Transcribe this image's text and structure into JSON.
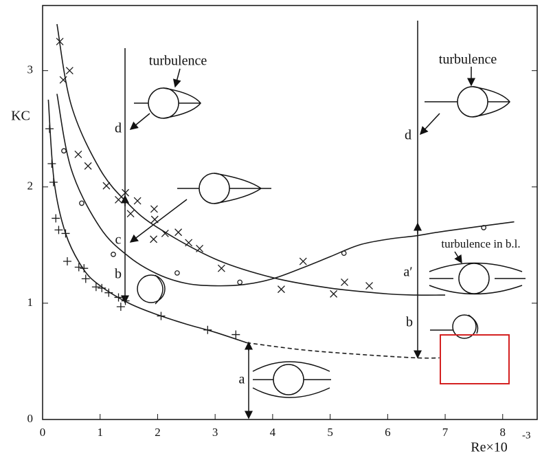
{
  "chart_data": {
    "type": "scatter",
    "x_label": "Re×10",
    "x_label_exponent": "-3",
    "y_label": "KC",
    "xlim": [
      0,
      8.6
    ],
    "ylim": [
      0,
      3.56
    ],
    "xticks": [
      0,
      1,
      2,
      3,
      4,
      5,
      6,
      7,
      8
    ],
    "yticks": [
      0,
      1,
      2,
      3
    ],
    "color": "#1a1a1a",
    "series": [
      {
        "marker": "x",
        "x": [
          0.3,
          0.36,
          0.47,
          0.62,
          0.79,
          1.11,
          1.32,
          1.44,
          1.53,
          1.65,
          1.94,
          1.95,
          1.93,
          2.13,
          2.36,
          2.54,
          2.73,
          3.11,
          4.15,
          4.53,
          5.06,
          5.25,
          5.68
        ],
        "y": [
          3.25,
          2.92,
          3.0,
          2.28,
          2.18,
          2.01,
          1.89,
          1.95,
          1.77,
          1.88,
          1.81,
          1.72,
          1.55,
          1.6,
          1.61,
          1.52,
          1.47,
          1.3,
          1.12,
          1.36,
          1.08,
          1.18,
          1.15
        ]
      },
      {
        "marker": "o",
        "x": [
          0.37,
          0.68,
          1.23,
          2.34,
          3.43,
          5.24,
          7.67
        ],
        "y": [
          2.31,
          1.86,
          1.42,
          1.26,
          1.18,
          1.43,
          1.65
        ]
      },
      {
        "marker": "+",
        "x": [
          0.12,
          0.16,
          0.19,
          0.23,
          0.28,
          0.4,
          0.43,
          0.63,
          0.72,
          0.75,
          0.93,
          1.03,
          1.15,
          1.32,
          1.36,
          1.44,
          2.06,
          2.87,
          3.36
        ],
        "y": [
          2.5,
          2.2,
          2.04,
          1.73,
          1.63,
          1.6,
          1.36,
          1.31,
          1.3,
          1.21,
          1.14,
          1.13,
          1.09,
          1.05,
          0.97,
          1.02,
          0.89,
          0.77,
          0.73
        ]
      },
      {
        "marker": "line",
        "x": [
          0.25,
          0.5,
          1,
          1.5,
          2,
          3,
          4,
          5,
          6,
          6.5,
          7
        ],
        "y": [
          3.4,
          2.7,
          2.15,
          1.85,
          1.65,
          1.38,
          1.22,
          1.13,
          1.08,
          1.07,
          1.07
        ]
      },
      {
        "marker": "line",
        "x": [
          0.25,
          0.5,
          1,
          1.5,
          2,
          2.5,
          3,
          3.5,
          4,
          4.5,
          5,
          5.5,
          6,
          6.5,
          7,
          8.2
        ],
        "y": [
          2.8,
          2.15,
          1.65,
          1.4,
          1.25,
          1.17,
          1.15,
          1.16,
          1.21,
          1.3,
          1.4,
          1.5,
          1.55,
          1.58,
          1.62,
          1.7
        ]
      },
      {
        "marker": "line",
        "x": [
          0.1,
          0.2,
          0.4,
          0.7,
          1,
          1.5,
          2,
          2.5,
          3,
          3.55
        ],
        "y": [
          2.75,
          2.05,
          1.6,
          1.3,
          1.15,
          1.0,
          0.9,
          0.82,
          0.75,
          0.66
        ]
      },
      {
        "marker": "dashed",
        "x": [
          3.55,
          4.5,
          5.5,
          6.5,
          6.9
        ],
        "y": [
          0.66,
          0.6,
          0.56,
          0.53,
          0.53
        ]
      }
    ],
    "annotations": [
      "turbulence",
      "turbulence",
      "turbulence in b.l.",
      "d",
      "d",
      "c",
      "b",
      "b",
      "a",
      "a′"
    ]
  }
}
